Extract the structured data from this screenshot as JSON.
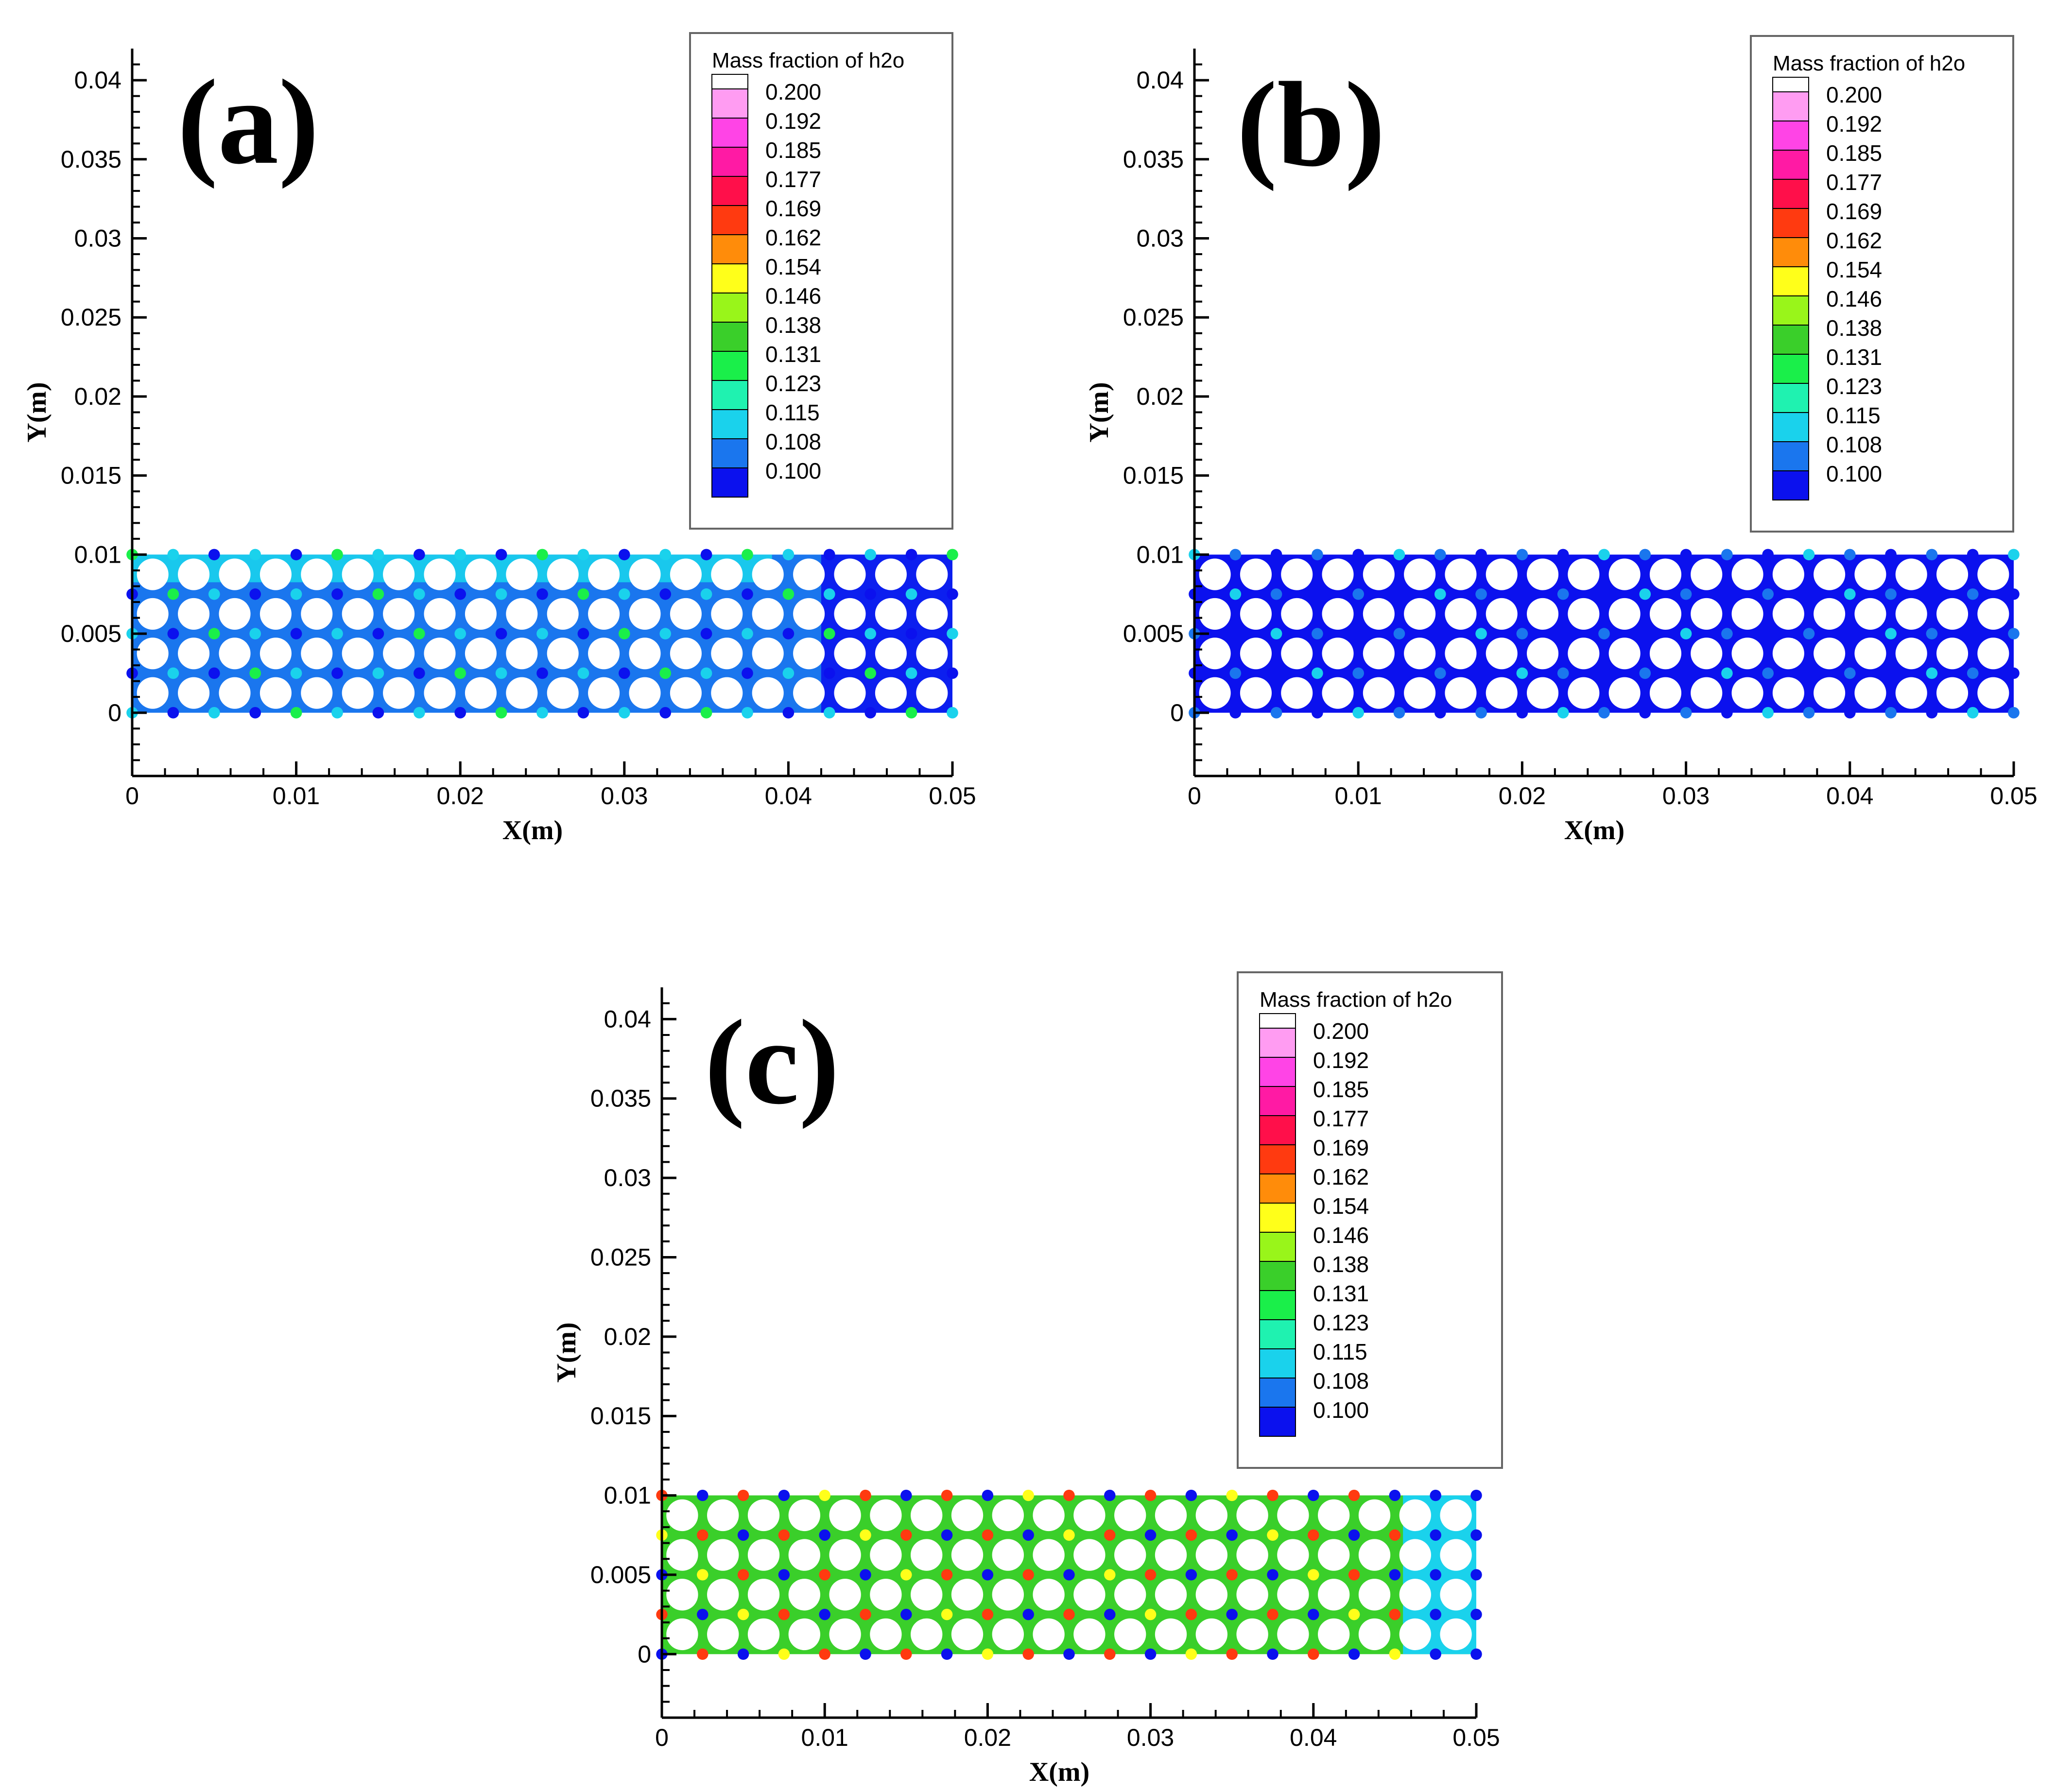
{
  "chart_data": [
    {
      "type": "heatmap",
      "panel_label": "(a)",
      "xlabel": "X(m)",
      "ylabel": "Y(m)",
      "xlim": [
        0,
        0.05
      ],
      "ylim": [
        -0.004,
        0.042
      ],
      "x_ticks": [
        "0",
        "0.01",
        "0.02",
        "0.03",
        "0.04",
        "0.05"
      ],
      "y_ticks": [
        "0",
        "0.005",
        "0.01",
        "0.015",
        "0.02",
        "0.025",
        "0.03",
        "0.035",
        "0.04"
      ],
      "domain": {
        "x": [
          0,
          0.05
        ],
        "y": [
          0,
          0.01
        ]
      },
      "pore_grid": {
        "columns": 20,
        "rows": 4,
        "x_spacing": 0.00247,
        "y_spacing": 0.00247
      },
      "base_value": 0.108,
      "hotspot_value": 0.115,
      "hotspot_pattern": "top-left band and sparse spots between pores",
      "low_spot_value": 0.1,
      "legend": {
        "title": "Mass fraction of h2o",
        "placement": "top-right"
      }
    },
    {
      "type": "heatmap",
      "panel_label": "(b)",
      "xlabel": "X(m)",
      "ylabel": "Y(m)",
      "xlim": [
        0,
        0.05
      ],
      "ylim": [
        -0.004,
        0.042
      ],
      "x_ticks": [
        "0",
        "0.01",
        "0.02",
        "0.03",
        "0.04",
        "0.05"
      ],
      "y_ticks": [
        "0",
        "0.005",
        "0.01",
        "0.015",
        "0.02",
        "0.025",
        "0.03",
        "0.035",
        "0.04"
      ],
      "domain": {
        "x": [
          0,
          0.05
        ],
        "y": [
          0,
          0.01
        ]
      },
      "pore_grid": {
        "columns": 20,
        "rows": 4,
        "x_spacing": 0.00247,
        "y_spacing": 0.00247
      },
      "base_value": 0.1,
      "hotspot_value": 0.108,
      "hotspot_pattern": "sparse spots between pores",
      "low_spot_value": 0.1,
      "legend": {
        "title": "Mass fraction of h2o",
        "placement": "top-right"
      }
    },
    {
      "type": "heatmap",
      "panel_label": "(c)",
      "xlabel": "X(m)",
      "ylabel": "Y(m)",
      "xlim": [
        0,
        0.05
      ],
      "ylim": [
        -0.004,
        0.042
      ],
      "x_ticks": [
        "0",
        "0.01",
        "0.02",
        "0.03",
        "0.04",
        "0.05"
      ],
      "y_ticks": [
        "0",
        "0.005",
        "0.01",
        "0.015",
        "0.02",
        "0.025",
        "0.03",
        "0.035",
        "0.04"
      ],
      "domain": {
        "x": [
          0,
          0.05
        ],
        "y": [
          0,
          0.01
        ]
      },
      "pore_grid": {
        "columns": 20,
        "rows": 4,
        "x_spacing": 0.00247,
        "y_spacing": 0.00247
      },
      "base_value": 0.138,
      "hotspot_value": 0.169,
      "hotspot_pattern": "dense hot spots between pores, outlet region 0.115",
      "low_spot_value": 0.1,
      "legend": {
        "title": "Mass fraction of h2o",
        "placement": "top-right"
      }
    }
  ],
  "legend_levels": [
    {
      "value": "0.200",
      "color": "#ff9cf2"
    },
    {
      "value": "0.192",
      "color": "#ff44e6"
    },
    {
      "value": "0.185",
      "color": "#ff1aa4"
    },
    {
      "value": "0.177",
      "color": "#ff0f4a"
    },
    {
      "value": "0.169",
      "color": "#ff3a10"
    },
    {
      "value": "0.162",
      "color": "#ff8c0a"
    },
    {
      "value": "0.154",
      "color": "#ffff1a"
    },
    {
      "value": "0.146",
      "color": "#99f51a"
    },
    {
      "value": "0.138",
      "color": "#3acf2a"
    },
    {
      "value": "0.131",
      "color": "#1aef4a"
    },
    {
      "value": "0.123",
      "color": "#1ff2b0"
    },
    {
      "value": "0.115",
      "color": "#1ad2ec"
    },
    {
      "value": "0.108",
      "color": "#1a76ee"
    },
    {
      "value": "0.100",
      "color": "#0b11ee"
    }
  ],
  "colors": {
    "axis": "#000000",
    "pore": "#ffffff",
    "legend_border": "#666666"
  }
}
